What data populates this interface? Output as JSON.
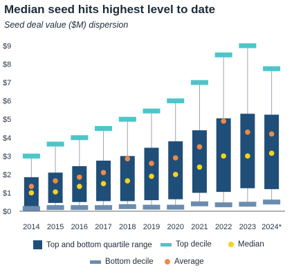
{
  "title": "Median seed hits highest level to date",
  "subtitle": "Seed deal value ($M) dispersion",
  "colors": {
    "quartile": "#1f4e79",
    "top_decile": "#4ec5c9",
    "bottom_decile": "#6b8cae",
    "median": "#f5d21e",
    "average": "#ee8a45",
    "whisker": "#9aa5b1",
    "axis": "#666666"
  },
  "legend": {
    "quartile": "Top and bottom quartile range",
    "top_decile": "Top decile",
    "median": "Median",
    "bottom_decile": "Bottom decile",
    "average": "Average"
  },
  "chart_data": {
    "type": "box",
    "title": "Median seed hits highest level to date",
    "subtitle": "Seed deal value ($M) dispersion",
    "ylim": [
      0,
      9.3
    ],
    "y_ticks": [
      "$0",
      "$1",
      "$2",
      "$3",
      "$4",
      "$5",
      "$6",
      "$7",
      "$8",
      "$9"
    ],
    "categories": [
      "2014",
      "2015",
      "2016",
      "2017",
      "2018",
      "2019",
      "2020",
      "2021",
      "2022",
      "2023",
      "2024*"
    ],
    "series": [
      {
        "name": "Top decile",
        "values": [
          3.0,
          3.65,
          4.0,
          4.5,
          5.0,
          5.45,
          6.0,
          7.0,
          8.5,
          9.0,
          7.75
        ]
      },
      {
        "name": "Top quartile",
        "values": [
          1.85,
          2.1,
          2.45,
          2.75,
          3.0,
          3.45,
          3.8,
          4.4,
          5.05,
          5.3,
          5.25
        ]
      },
      {
        "name": "Average",
        "values": [
          1.35,
          1.65,
          1.85,
          2.1,
          2.85,
          2.6,
          2.9,
          3.5,
          4.9,
          4.3,
          4.2
        ]
      },
      {
        "name": "Median",
        "values": [
          1.0,
          1.05,
          1.35,
          1.5,
          1.65,
          1.9,
          2.0,
          2.4,
          3.0,
          3.0,
          3.15
        ]
      },
      {
        "name": "Bottom quartile",
        "values": [
          0.25,
          0.45,
          0.5,
          0.55,
          0.55,
          0.6,
          0.65,
          1.0,
          1.05,
          1.25,
          1.2
        ]
      },
      {
        "name": "Bottom decile",
        "values": [
          0.15,
          0.2,
          0.2,
          0.2,
          0.25,
          0.22,
          0.22,
          0.4,
          0.35,
          0.38,
          0.5
        ]
      }
    ]
  }
}
